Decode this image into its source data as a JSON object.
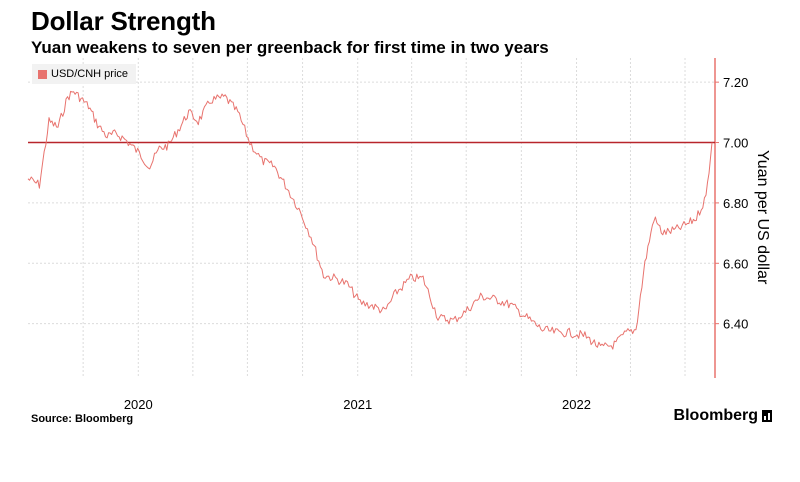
{
  "title": "Dollar Strength",
  "subtitle": "Yuan weakens to seven per greenback for first time in two years",
  "source": "Source: Bloomberg",
  "brand": "Bloomberg",
  "colors": {
    "series": "#e8736e",
    "reference_line": "#b8252b",
    "grid": "#dcdcdc"
  },
  "chart_data": {
    "type": "line",
    "title": "Dollar Strength",
    "subtitle": "Yuan weakens to seven per greenback for first time in two years",
    "ylabel": "Yuan per US dollar",
    "xlabel": "",
    "ylim": [
      6.22,
      7.28
    ],
    "yticks": [
      6.4,
      6.6,
      6.8,
      7.0,
      7.2
    ],
    "ytick_labels": [
      "6.40",
      "6.60",
      "6.80",
      "7.00",
      "7.20"
    ],
    "xlim": [
      "2019-07-01",
      "2022-08-20"
    ],
    "xtick_labels": [
      {
        "label": "2020",
        "date": "2020-01-01"
      },
      {
        "label": "2021",
        "date": "2021-01-01"
      },
      {
        "label": "2022",
        "date": "2022-01-01"
      }
    ],
    "grid": true,
    "legend_position": "top-left",
    "reference_line": {
      "y": 7.0
    },
    "series": [
      {
        "name": "USD/CNH price",
        "x": [
          "2019-07-01",
          "2019-07-20",
          "2019-08-05",
          "2019-08-20",
          "2019-09-05",
          "2019-09-15",
          "2019-09-30",
          "2019-10-10",
          "2019-10-25",
          "2019-11-10",
          "2019-11-25",
          "2019-12-10",
          "2019-12-31",
          "2020-01-20",
          "2020-02-05",
          "2020-02-20",
          "2020-03-10",
          "2020-03-25",
          "2020-04-10",
          "2020-05-01",
          "2020-05-25",
          "2020-06-15",
          "2020-07-05",
          "2020-07-25",
          "2020-08-15",
          "2020-09-05",
          "2020-09-25",
          "2020-10-15",
          "2020-11-05",
          "2020-11-25",
          "2020-12-15",
          "2021-01-05",
          "2021-01-25",
          "2021-02-15",
          "2021-03-05",
          "2021-03-30",
          "2021-04-20",
          "2021-05-15",
          "2021-06-10",
          "2021-06-30",
          "2021-07-25",
          "2021-08-20",
          "2021-09-15",
          "2021-10-10",
          "2021-11-05",
          "2021-11-30",
          "2021-12-20",
          "2022-01-15",
          "2022-02-10",
          "2022-03-05",
          "2022-03-25",
          "2022-04-10",
          "2022-04-25",
          "2022-05-10",
          "2022-05-25",
          "2022-06-15",
          "2022-07-05",
          "2022-07-20",
          "2022-08-05",
          "2022-08-15"
        ],
        "values": [
          6.88,
          6.86,
          7.07,
          7.05,
          7.15,
          7.17,
          7.14,
          7.12,
          7.06,
          7.02,
          7.03,
          7.01,
          6.97,
          6.92,
          6.98,
          6.99,
          7.05,
          7.1,
          7.07,
          7.14,
          7.15,
          7.1,
          7.0,
          6.94,
          6.92,
          6.85,
          6.78,
          6.69,
          6.56,
          6.55,
          6.53,
          6.47,
          6.46,
          6.44,
          6.5,
          6.55,
          6.55,
          6.42,
          6.41,
          6.44,
          6.49,
          6.48,
          6.46,
          6.42,
          6.38,
          6.37,
          6.37,
          6.36,
          6.32,
          6.33,
          6.37,
          6.38,
          6.6,
          6.75,
          6.7,
          6.71,
          6.73,
          6.75,
          6.82,
          7.0
        ]
      }
    ]
  }
}
